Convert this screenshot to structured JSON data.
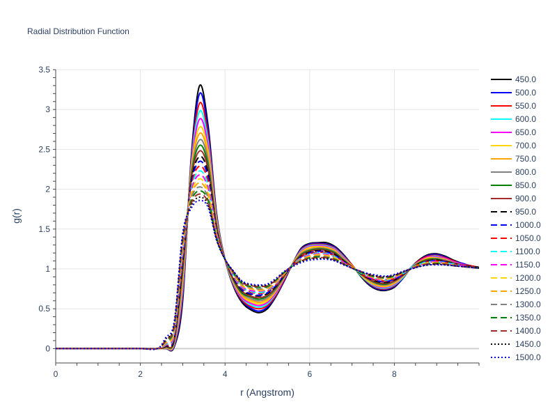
{
  "chart_data": {
    "type": "line",
    "title": "Radial Distribution Function",
    "xlabel": "r (Angstrom)",
    "ylabel": "g(r)",
    "xlim": [
      0,
      10
    ],
    "ylim": [
      -0.18,
      3.5
    ],
    "xticks": [
      0,
      2,
      4,
      6,
      8
    ],
    "yticks": [
      0,
      0.5,
      1,
      1.5,
      2,
      2.5,
      3,
      3.5
    ],
    "ytick_labels": [
      "0",
      "0.5",
      "1",
      "1.5",
      "2",
      "2.5",
      "3",
      "3.5"
    ],
    "grid": true,
    "legend_position": "right",
    "x": [
      0,
      0.5,
      1,
      1.5,
      2,
      2.4,
      2.6,
      2.8,
      3,
      3.2,
      3.4,
      3.6,
      3.8,
      4,
      4.2,
      4.4,
      4.6,
      4.8,
      5,
      5.2,
      5.4,
      5.6,
      5.8,
      6,
      6.2,
      6.4,
      6.6,
      6.8,
      7,
      7.2,
      7.4,
      7.6,
      7.8,
      8,
      8.2,
      8.4,
      8.6,
      8.8,
      9,
      9.2,
      9.4,
      9.6,
      9.8,
      10
    ],
    "series": [
      {
        "name": "450.0",
        "color": "#000000",
        "dash": "solid",
        "values": [
          0,
          0,
          0,
          0,
          0,
          0,
          0.002,
          0.02,
          0.6,
          2.4,
          3.3,
          2.8,
          1.7,
          1.12,
          0.78,
          0.58,
          0.49,
          0.45,
          0.5,
          0.65,
          0.85,
          1.07,
          1.26,
          1.32,
          1.33,
          1.33,
          1.28,
          1.18,
          1.05,
          0.91,
          0.8,
          0.74,
          0.73,
          0.77,
          0.88,
          1.02,
          1.12,
          1.18,
          1.19,
          1.16,
          1.11,
          1.07,
          1.04,
          1.02
        ]
      },
      {
        "name": "500.0",
        "color": "#0000ff",
        "dash": "solid",
        "values": [
          0,
          0,
          0,
          0,
          0,
          0,
          0.003,
          0.03,
          0.65,
          2.36,
          3.2,
          2.74,
          1.68,
          1.12,
          0.79,
          0.6,
          0.51,
          0.47,
          0.52,
          0.66,
          0.86,
          1.07,
          1.25,
          1.31,
          1.32,
          1.31,
          1.27,
          1.17,
          1.05,
          0.92,
          0.81,
          0.75,
          0.74,
          0.78,
          0.88,
          1.02,
          1.11,
          1.17,
          1.18,
          1.15,
          1.1,
          1.07,
          1.04,
          1.02
        ]
      },
      {
        "name": "550.0",
        "color": "#ff0000",
        "dash": "solid",
        "values": [
          0,
          0,
          0,
          0,
          0,
          0,
          0.004,
          0.04,
          0.7,
          2.33,
          3.08,
          2.67,
          1.66,
          1.12,
          0.8,
          0.61,
          0.53,
          0.5,
          0.54,
          0.67,
          0.87,
          1.07,
          1.24,
          1.3,
          1.31,
          1.3,
          1.26,
          1.16,
          1.05,
          0.92,
          0.82,
          0.76,
          0.75,
          0.79,
          0.89,
          1.02,
          1.11,
          1.16,
          1.17,
          1.14,
          1.1,
          1.06,
          1.04,
          1.02
        ]
      },
      {
        "name": "600.0",
        "color": "#00ffff",
        "dash": "solid",
        "values": [
          0,
          0,
          0,
          0,
          0,
          0,
          0.006,
          0.05,
          0.75,
          2.3,
          2.98,
          2.6,
          1.64,
          1.12,
          0.81,
          0.63,
          0.55,
          0.52,
          0.56,
          0.69,
          0.88,
          1.07,
          1.23,
          1.29,
          1.3,
          1.29,
          1.25,
          1.15,
          1.04,
          0.92,
          0.83,
          0.77,
          0.76,
          0.8,
          0.89,
          1.02,
          1.1,
          1.15,
          1.16,
          1.13,
          1.09,
          1.06,
          1.03,
          1.02
        ]
      },
      {
        "name": "650.0",
        "color": "#ff00ff",
        "dash": "solid",
        "values": [
          0,
          0,
          0,
          0,
          0,
          0,
          0.008,
          0.06,
          0.8,
          2.27,
          2.88,
          2.54,
          1.62,
          1.12,
          0.82,
          0.64,
          0.57,
          0.54,
          0.58,
          0.7,
          0.88,
          1.07,
          1.22,
          1.28,
          1.29,
          1.28,
          1.24,
          1.14,
          1.04,
          0.93,
          0.84,
          0.78,
          0.77,
          0.81,
          0.9,
          1.01,
          1.1,
          1.15,
          1.15,
          1.13,
          1.09,
          1.06,
          1.03,
          1.02
        ]
      },
      {
        "name": "700.0",
        "color": "#ffd700",
        "dash": "solid",
        "values": [
          0,
          0,
          0,
          0,
          0,
          0,
          0.01,
          0.07,
          0.85,
          2.24,
          2.78,
          2.48,
          1.6,
          1.12,
          0.83,
          0.66,
          0.59,
          0.56,
          0.6,
          0.72,
          0.89,
          1.07,
          1.21,
          1.27,
          1.28,
          1.27,
          1.23,
          1.13,
          1.04,
          0.93,
          0.84,
          0.79,
          0.78,
          0.82,
          0.9,
          1.01,
          1.09,
          1.14,
          1.14,
          1.12,
          1.08,
          1.05,
          1.03,
          1.02
        ]
      },
      {
        "name": "750.0",
        "color": "#ffa500",
        "dash": "solid",
        "values": [
          0,
          0,
          0,
          0,
          0,
          0,
          0.013,
          0.08,
          0.9,
          2.21,
          2.7,
          2.42,
          1.58,
          1.12,
          0.84,
          0.67,
          0.61,
          0.58,
          0.62,
          0.73,
          0.9,
          1.06,
          1.2,
          1.25,
          1.27,
          1.26,
          1.22,
          1.13,
          1.03,
          0.93,
          0.85,
          0.8,
          0.79,
          0.83,
          0.91,
          1.01,
          1.09,
          1.13,
          1.13,
          1.11,
          1.08,
          1.05,
          1.03,
          1.02
        ]
      },
      {
        "name": "800.0",
        "color": "#808080",
        "dash": "solid",
        "values": [
          0,
          0,
          0,
          0,
          0,
          0,
          0.016,
          0.09,
          0.95,
          2.18,
          2.62,
          2.36,
          1.56,
          1.12,
          0.85,
          0.69,
          0.63,
          0.6,
          0.64,
          0.74,
          0.9,
          1.06,
          1.19,
          1.24,
          1.26,
          1.25,
          1.21,
          1.12,
          1.03,
          0.94,
          0.86,
          0.81,
          0.8,
          0.84,
          0.91,
          1.01,
          1.08,
          1.12,
          1.13,
          1.11,
          1.08,
          1.05,
          1.03,
          1.02
        ]
      },
      {
        "name": "850.0",
        "color": "#008000",
        "dash": "solid",
        "values": [
          0,
          0,
          0,
          0,
          0,
          0,
          0.02,
          0.1,
          1,
          2.15,
          2.55,
          2.3,
          1.54,
          1.12,
          0.86,
          0.7,
          0.65,
          0.62,
          0.66,
          0.76,
          0.91,
          1.06,
          1.18,
          1.23,
          1.25,
          1.24,
          1.2,
          1.11,
          1.03,
          0.94,
          0.87,
          0.82,
          0.81,
          0.85,
          0.92,
          1.01,
          1.08,
          1.12,
          1.12,
          1.1,
          1.07,
          1.05,
          1.03,
          1.02
        ]
      },
      {
        "name": "900.0",
        "color": "#a52a2a",
        "dash": "solid",
        "values": [
          0,
          0,
          0,
          0,
          0,
          0,
          0.025,
          0.11,
          1.04,
          2.12,
          2.48,
          2.25,
          1.52,
          1.12,
          0.87,
          0.72,
          0.66,
          0.64,
          0.67,
          0.77,
          0.92,
          1.06,
          1.17,
          1.22,
          1.24,
          1.23,
          1.19,
          1.1,
          1.03,
          0.94,
          0.87,
          0.83,
          0.82,
          0.85,
          0.92,
          1.01,
          1.07,
          1.11,
          1.11,
          1.1,
          1.07,
          1.05,
          1.03,
          1.02
        ]
      },
      {
        "name": "950.0",
        "color": "#000000",
        "dash": "dash",
        "values": [
          0,
          0,
          0,
          0,
          0,
          0,
          0.03,
          0.12,
          1.08,
          2.09,
          2.41,
          2.2,
          1.5,
          1.12,
          0.88,
          0.73,
          0.68,
          0.66,
          0.69,
          0.78,
          0.92,
          1.05,
          1.16,
          1.21,
          1.23,
          1.22,
          1.18,
          1.1,
          1.02,
          0.94,
          0.88,
          0.84,
          0.83,
          0.86,
          0.93,
          1.01,
          1.07,
          1.1,
          1.11,
          1.09,
          1.07,
          1.04,
          1.03,
          1.02
        ]
      },
      {
        "name": "1000.0",
        "color": "#0000ff",
        "dash": "dash",
        "values": [
          0,
          0,
          0,
          0,
          0,
          0,
          0.035,
          0.14,
          1.12,
          2.06,
          2.35,
          2.15,
          1.48,
          1.12,
          0.89,
          0.74,
          0.69,
          0.67,
          0.7,
          0.79,
          0.93,
          1.05,
          1.15,
          1.2,
          1.22,
          1.21,
          1.17,
          1.09,
          1.02,
          0.95,
          0.89,
          0.85,
          0.84,
          0.87,
          0.93,
          1.01,
          1.06,
          1.1,
          1.1,
          1.09,
          1.06,
          1.04,
          1.02,
          1.01
        ]
      },
      {
        "name": "1050.0",
        "color": "#ff0000",
        "dash": "dash",
        "values": [
          0,
          0,
          0,
          0,
          0,
          0,
          0.04,
          0.16,
          1.16,
          2.03,
          2.29,
          2.1,
          1.47,
          1.12,
          0.9,
          0.76,
          0.71,
          0.69,
          0.72,
          0.8,
          0.93,
          1.05,
          1.15,
          1.19,
          1.21,
          1.2,
          1.16,
          1.09,
          1.02,
          0.95,
          0.89,
          0.86,
          0.85,
          0.88,
          0.94,
          1.01,
          1.06,
          1.09,
          1.1,
          1.08,
          1.06,
          1.04,
          1.02,
          1.01
        ]
      },
      {
        "name": "1100.0",
        "color": "#00ffff",
        "dash": "dash",
        "values": [
          0,
          0,
          0,
          0,
          0,
          0,
          0.05,
          0.18,
          1.2,
          2,
          2.23,
          2.05,
          1.45,
          1.12,
          0.91,
          0.77,
          0.72,
          0.7,
          0.73,
          0.81,
          0.94,
          1.05,
          1.14,
          1.18,
          1.2,
          1.19,
          1.15,
          1.08,
          1.02,
          0.95,
          0.9,
          0.87,
          0.86,
          0.89,
          0.94,
          1.01,
          1.06,
          1.09,
          1.09,
          1.08,
          1.06,
          1.04,
          1.02,
          1.01
        ]
      },
      {
        "name": "1150.0",
        "color": "#ff00ff",
        "dash": "dash",
        "values": [
          0,
          0,
          0,
          0,
          0,
          0,
          0.06,
          0.2,
          1.24,
          1.97,
          2.18,
          2.01,
          1.44,
          1.12,
          0.92,
          0.78,
          0.73,
          0.72,
          0.74,
          0.82,
          0.94,
          1.04,
          1.13,
          1.17,
          1.19,
          1.18,
          1.14,
          1.08,
          1.02,
          0.96,
          0.9,
          0.87,
          0.87,
          0.89,
          0.95,
          1.01,
          1.05,
          1.08,
          1.09,
          1.07,
          1.05,
          1.04,
          1.02,
          1.01
        ]
      },
      {
        "name": "1200.0",
        "color": "#ffd700",
        "dash": "dash",
        "values": [
          0,
          0,
          0,
          0,
          0,
          0,
          0.07,
          0.22,
          1.27,
          1.94,
          2.13,
          1.97,
          1.42,
          1.12,
          0.93,
          0.79,
          0.75,
          0.73,
          0.75,
          0.83,
          0.94,
          1.04,
          1.12,
          1.16,
          1.18,
          1.17,
          1.14,
          1.07,
          1.02,
          0.96,
          0.91,
          0.88,
          0.87,
          0.9,
          0.95,
          1.01,
          1.05,
          1.08,
          1.08,
          1.07,
          1.05,
          1.03,
          1.02,
          1.01
        ]
      },
      {
        "name": "1250.0",
        "color": "#ffa500",
        "dash": "dash",
        "values": [
          0,
          0,
          0,
          0,
          0,
          0,
          0.08,
          0.24,
          1.3,
          1.91,
          2.08,
          1.93,
          1.41,
          1.12,
          0.94,
          0.8,
          0.76,
          0.74,
          0.76,
          0.84,
          0.95,
          1.04,
          1.12,
          1.15,
          1.17,
          1.16,
          1.13,
          1.07,
          1.02,
          0.96,
          0.91,
          0.89,
          0.88,
          0.9,
          0.95,
          1.01,
          1.05,
          1.07,
          1.08,
          1.07,
          1.05,
          1.03,
          1.02,
          1.01
        ]
      },
      {
        "name": "1300.0",
        "color": "#808080",
        "dash": "dash",
        "values": [
          0,
          0,
          0,
          0,
          0,
          0,
          0.09,
          0.26,
          1.33,
          1.88,
          2.03,
          1.89,
          1.4,
          1.12,
          0.94,
          0.81,
          0.77,
          0.75,
          0.77,
          0.85,
          0.95,
          1.04,
          1.11,
          1.14,
          1.16,
          1.15,
          1.12,
          1.07,
          1.01,
          0.96,
          0.92,
          0.89,
          0.89,
          0.91,
          0.96,
          1.01,
          1.04,
          1.07,
          1.07,
          1.06,
          1.05,
          1.03,
          1.02,
          1.01
        ]
      },
      {
        "name": "1350.0",
        "color": "#008000",
        "dash": "dash",
        "values": [
          0,
          0,
          0,
          0,
          0,
          0,
          0.1,
          0.28,
          1.36,
          1.85,
          1.98,
          1.86,
          1.39,
          1.12,
          0.95,
          0.82,
          0.78,
          0.77,
          0.78,
          0.86,
          0.96,
          1.04,
          1.1,
          1.14,
          1.15,
          1.14,
          1.12,
          1.06,
          1.01,
          0.96,
          0.92,
          0.9,
          0.89,
          0.91,
          0.96,
          1,
          1.04,
          1.06,
          1.07,
          1.06,
          1.04,
          1.03,
          1.02,
          1.01
        ]
      },
      {
        "name": "1400.0",
        "color": "#a52a2a",
        "dash": "dash",
        "values": [
          0,
          0,
          0,
          0,
          0,
          0,
          0.11,
          0.3,
          1.39,
          1.82,
          1.94,
          1.83,
          1.38,
          1.12,
          0.96,
          0.83,
          0.79,
          0.78,
          0.79,
          0.86,
          0.96,
          1.04,
          1.1,
          1.13,
          1.14,
          1.14,
          1.11,
          1.06,
          1.01,
          0.97,
          0.93,
          0.9,
          0.9,
          0.92,
          0.96,
          1,
          1.04,
          1.06,
          1.06,
          1.06,
          1.04,
          1.03,
          1.02,
          1.01
        ]
      },
      {
        "name": "1450.0",
        "color": "#000000",
        "dash": "dot",
        "values": [
          0,
          0,
          0,
          0,
          0,
          0,
          0.12,
          0.32,
          1.42,
          1.79,
          1.9,
          1.8,
          1.37,
          1.12,
          0.97,
          0.84,
          0.8,
          0.79,
          0.8,
          0.87,
          0.96,
          1.03,
          1.09,
          1.12,
          1.13,
          1.13,
          1.1,
          1.06,
          1.01,
          0.97,
          0.93,
          0.91,
          0.9,
          0.92,
          0.96,
          1,
          1.03,
          1.05,
          1.06,
          1.05,
          1.04,
          1.03,
          1.02,
          1.01
        ]
      },
      {
        "name": "1500.0",
        "color": "#0000ff",
        "dash": "dot",
        "values": [
          0,
          0,
          0,
          0,
          0,
          0,
          0.14,
          0.34,
          1.45,
          1.76,
          1.86,
          1.77,
          1.36,
          1.12,
          0.97,
          0.85,
          0.81,
          0.8,
          0.81,
          0.88,
          0.97,
          1.03,
          1.08,
          1.11,
          1.12,
          1.12,
          1.1,
          1.05,
          1.01,
          0.97,
          0.94,
          0.92,
          0.91,
          0.93,
          0.97,
          1,
          1.03,
          1.05,
          1.05,
          1.05,
          1.04,
          1.03,
          1.02,
          1.01
        ]
      }
    ]
  }
}
